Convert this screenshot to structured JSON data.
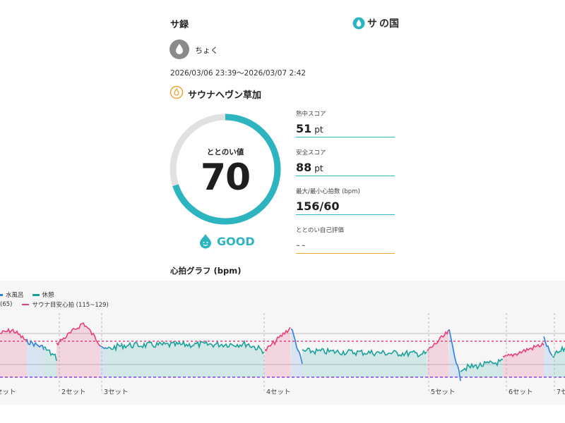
{
  "header": {
    "title": "サ録",
    "logo_text": "の国",
    "logo_mark": "サ"
  },
  "user": {
    "name": "ちょく"
  },
  "session": {
    "period": "2026/03/06 23:39～2026/03/07 2:42"
  },
  "facility": {
    "name": "サウナヘヴン草加"
  },
  "totonoi": {
    "label": "ととのい値",
    "value": "70",
    "max": 100,
    "rating": "GOOD"
  },
  "stats": {
    "heat": {
      "label": "熱中スコア",
      "value": "51",
      "unit": "pt"
    },
    "safety": {
      "label": "安全スコア",
      "value": "88",
      "unit": "pt"
    },
    "heart": {
      "label": "最大/最小心拍数 (bpm)",
      "value": "156/60"
    },
    "self_eval": {
      "label": "ととのい自己評価",
      "value": "--"
    }
  },
  "graph": {
    "title": "心拍グラフ (bpm)",
    "legend": {
      "water_bath": "水風呂",
      "rest": "休憩",
      "rest_hr": "(65)",
      "target": "サウナ目安心拍 (115~129)"
    },
    "sets": [
      "セット",
      "2セット",
      "3セット",
      "4セット",
      "5セット",
      "6セット",
      "7セ"
    ],
    "colors": {
      "sauna": "#e8407a",
      "water": "#2f7fe0",
      "rest": "#1aa19a",
      "purple": "#8a3cf0",
      "gauge": "#2cb5c0"
    }
  }
}
